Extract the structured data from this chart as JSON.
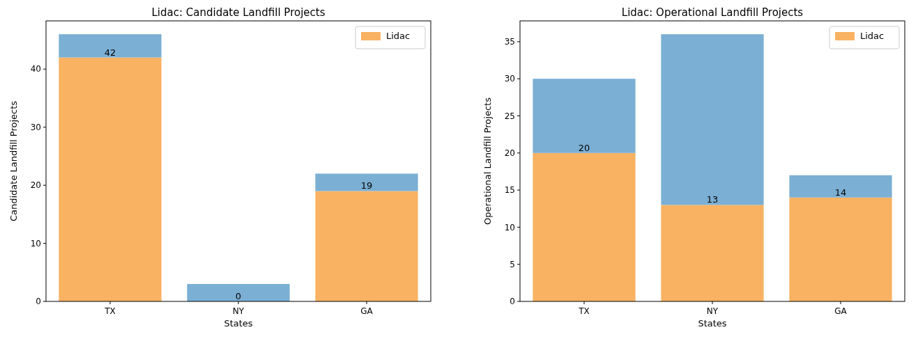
{
  "chart_data": [
    {
      "type": "bar",
      "title": "Lidac: Candidate Landfill Projects",
      "xlabel": "States",
      "ylabel": "Candidate Landfill Projects",
      "categories": [
        "TX",
        "NY",
        "GA"
      ],
      "series": [
        {
          "name": "Lidac",
          "color": "#f8b262",
          "values": [
            42,
            0,
            19
          ],
          "value_labels": [
            "42",
            "0",
            "19"
          ]
        },
        {
          "color": "#7bafd4",
          "values": [
            4,
            3,
            3
          ]
        }
      ],
      "stacked": true,
      "ylim": [
        0,
        48.3
      ],
      "yticks": [
        0,
        10,
        20,
        30,
        40
      ],
      "legend": "top right"
    },
    {
      "type": "bar",
      "title": "Lidac: Operational Landfill Projects",
      "xlabel": "States",
      "ylabel": "Operational Landfill Projects",
      "categories": [
        "TX",
        "NY",
        "GA"
      ],
      "series": [
        {
          "name": "Lidac",
          "color": "#f8b262",
          "values": [
            20,
            13,
            14
          ],
          "value_labels": [
            "20",
            "13",
            "14"
          ]
        },
        {
          "color": "#7bafd4",
          "values": [
            10,
            23,
            3
          ]
        }
      ],
      "stacked": true,
      "ylim": [
        0,
        37.8
      ],
      "yticks": [
        0,
        5,
        10,
        15,
        20,
        25,
        30,
        35
      ],
      "legend": "top right"
    }
  ]
}
